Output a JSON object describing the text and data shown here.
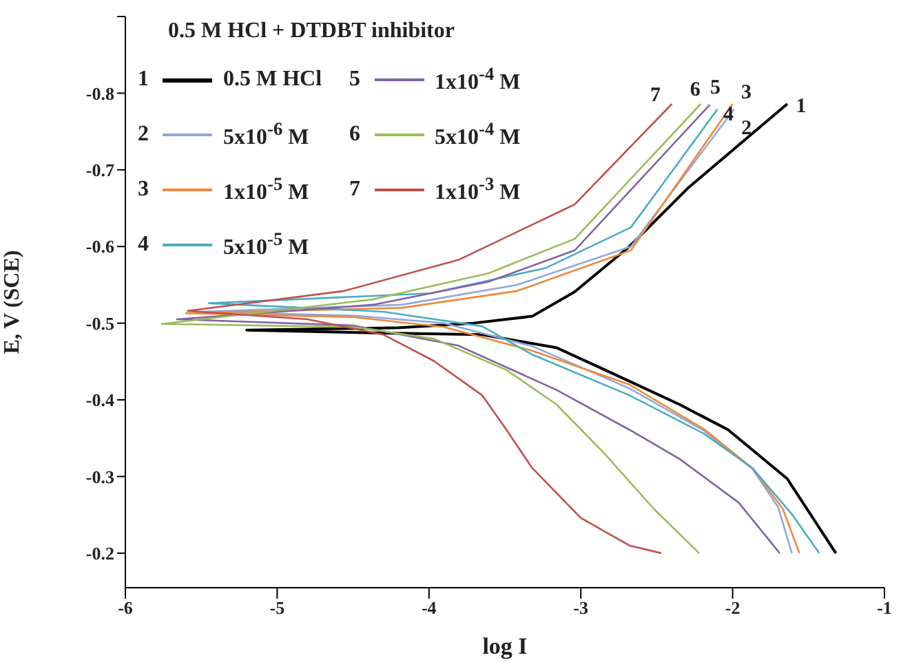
{
  "chart_data": {
    "type": "line",
    "xlabel": "log I",
    "ylabel": "E, V (SCE)",
    "legend_title": "0.5 M HCl + DTDBT inhibitor",
    "legend": "top left",
    "grid": false,
    "marker": "none",
    "line_style": "solid",
    "xlim": [
      -6,
      -1
    ],
    "xticks": [
      -6,
      -5,
      -4,
      -3,
      -2,
      -1
    ],
    "ylim": [
      -0.155,
      -0.9
    ],
    "yticks": [
      {
        "value": -0.9,
        "label": null
      },
      -0.8,
      -0.7,
      -0.6,
      -0.5,
      -0.4,
      -0.3,
      -0.2
    ],
    "series": [
      {
        "name": "0.5 M HCl",
        "color": "#000000",
        "x": [
          -1.64,
          -2.29,
          -2.68,
          -3.04,
          -3.32,
          -3.71,
          -4.2,
          -5.2,
          -4.3,
          -3.65,
          -3.16,
          -2.84,
          -2.35,
          -2.03,
          -1.64,
          -1.32
        ],
        "values": [
          -0.786,
          -0.677,
          -0.6,
          -0.541,
          -0.509,
          -0.5,
          -0.494,
          -0.491,
          -0.487,
          -0.485,
          -0.468,
          -0.439,
          -0.394,
          -0.361,
          -0.297,
          -0.2
        ]
      },
      {
        "name": "5x10$^{-6}$ M",
        "color": "#8ea9db",
        "x": [
          -1.99,
          -2.67,
          -3.42,
          -4.18,
          -5.5,
          -4.5,
          -3.9,
          -3.32,
          -2.68,
          -2.19,
          -1.87,
          -1.7,
          -1.61
        ],
        "values": [
          -0.779,
          -0.6,
          -0.55,
          -0.524,
          -0.515,
          -0.51,
          -0.5,
          -0.47,
          -0.415,
          -0.36,
          -0.31,
          -0.26,
          -0.2
        ]
      },
      {
        "name": "1x10$^{-5}$ M",
        "color": "#f0883a",
        "x": [
          -2.0,
          -2.67,
          -3.42,
          -4.18,
          -5.6,
          -4.5,
          -3.9,
          -3.32,
          -2.68,
          -2.19,
          -1.87,
          -1.67,
          -1.56
        ],
        "values": [
          -0.786,
          -0.595,
          -0.542,
          -0.52,
          -0.513,
          -0.508,
          -0.495,
          -0.464,
          -0.42,
          -0.362,
          -0.311,
          -0.258,
          -0.2
        ]
      },
      {
        "name": "5x10$^{-5}$ M",
        "color": "#4bacc6",
        "x": [
          -2.1,
          -2.67,
          -3.23,
          -3.99,
          -5.45,
          -4.3,
          -3.65,
          -3.32,
          -2.68,
          -2.19,
          -1.87,
          -1.61,
          -1.43
        ],
        "values": [
          -0.779,
          -0.625,
          -0.572,
          -0.539,
          -0.526,
          -0.515,
          -0.496,
          -0.459,
          -0.406,
          -0.356,
          -0.311,
          -0.251,
          -0.2
        ]
      },
      {
        "name": "1x10$^{-4}$ M",
        "color": "#8064a2",
        "x": [
          -2.15,
          -3.04,
          -3.61,
          -4.37,
          -5.66,
          -4.5,
          -3.81,
          -3.16,
          -2.68,
          -2.35,
          -1.96,
          -1.69
        ],
        "values": [
          -0.785,
          -0.595,
          -0.554,
          -0.524,
          -0.505,
          -0.497,
          -0.471,
          -0.413,
          -0.361,
          -0.323,
          -0.266,
          -0.2
        ]
      },
      {
        "name": "5x10$^{-4}$ M",
        "color": "#9bbb59",
        "x": [
          -2.21,
          -3.04,
          -3.61,
          -4.37,
          -5.76,
          -4.5,
          -3.97,
          -3.49,
          -3.16,
          -2.84,
          -2.52,
          -2.22
        ],
        "values": [
          -0.786,
          -0.61,
          -0.565,
          -0.531,
          -0.499,
          -0.495,
          -0.48,
          -0.439,
          -0.394,
          -0.329,
          -0.258,
          -0.2
        ]
      },
      {
        "name": "1x10$^{-3}$ M",
        "color": "#c0504d",
        "x": [
          -2.4,
          -3.04,
          -3.8,
          -4.56,
          -5.59,
          -4.8,
          -4.3,
          -3.97,
          -3.65,
          -3.49,
          -3.32,
          -3.0,
          -2.68,
          -2.47
        ],
        "values": [
          -0.786,
          -0.655,
          -0.583,
          -0.542,
          -0.516,
          -0.505,
          -0.485,
          -0.451,
          -0.406,
          -0.361,
          -0.311,
          -0.246,
          -0.21,
          -0.2
        ]
      }
    ],
    "annotations": [
      {
        "text": "1",
        "x": -1.64,
        "y": -0.786
      },
      {
        "text": "2",
        "x": -1.99,
        "y": -0.779
      },
      {
        "text": "3",
        "x": -2.0,
        "y": -0.786
      },
      {
        "text": "4",
        "x": -2.1,
        "y": -0.779
      },
      {
        "text": "5",
        "x": -2.15,
        "y": -0.785
      },
      {
        "text": "6",
        "x": -2.21,
        "y": -0.786
      },
      {
        "text": "7",
        "x": -2.4,
        "y": -0.786
      }
    ]
  }
}
